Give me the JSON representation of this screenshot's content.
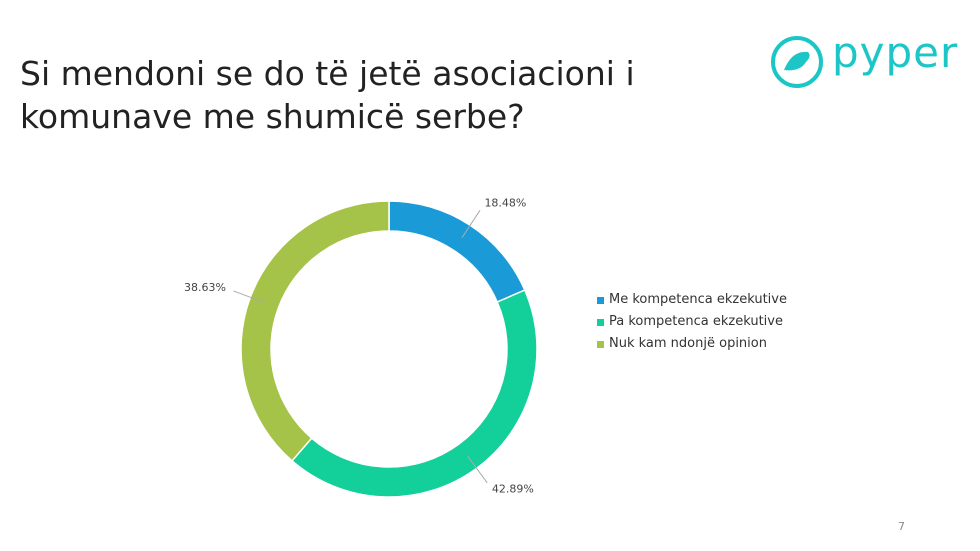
{
  "logo": "pyper",
  "page_number": "7",
  "chart_data": {
    "type": "doughnut",
    "title": "Si mendoni se do të jetë asociacioni i komunave me shumicë serbe?",
    "categories": [
      "Me kompetenca ekzekutive",
      "Pa kompetenca ekzekutive",
      "Nuk kam ndonjë opinion"
    ],
    "values": [
      18.48,
      42.89,
      38.63
    ],
    "value_labels": [
      "18.48%",
      "42.89%",
      "38.63%"
    ],
    "colors": [
      "#1a9ad6",
      "#13cf9a",
      "#a5c249"
    ],
    "legend": "right"
  }
}
